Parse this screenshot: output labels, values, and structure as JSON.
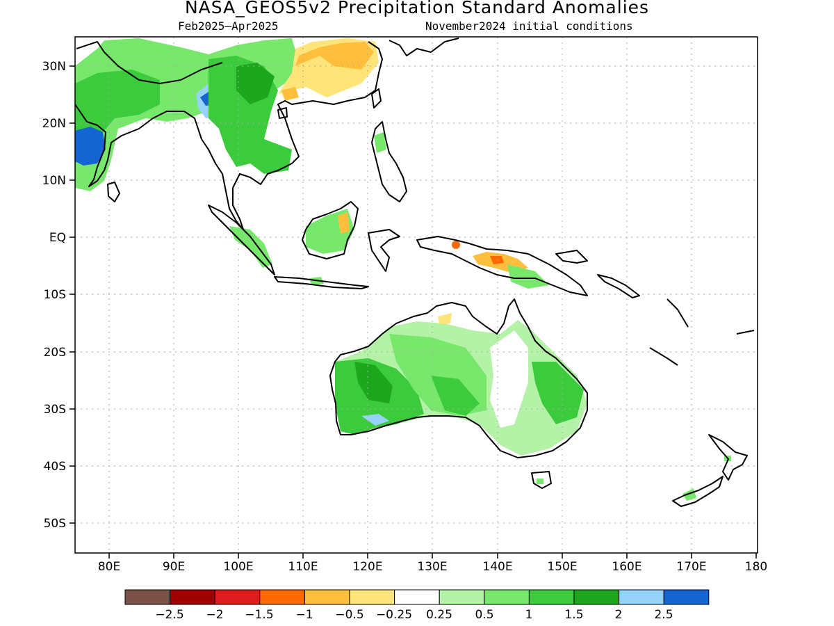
{
  "title": "NASA_GEOS5v2 Precipitation Standard Anomalies",
  "period": "Feb2025–Apr2025",
  "initial_conditions": "November2024 initial conditions",
  "lat_labels": [
    "30N",
    "20N",
    "10N",
    "EQ",
    "10S",
    "20S",
    "30S",
    "40S",
    "50S"
  ],
  "lon_labels": [
    "80E",
    "90E",
    "100E",
    "110E",
    "120E",
    "130E",
    "140E",
    "150E",
    "160E",
    "170E",
    "180"
  ],
  "colorbar": {
    "colors": [
      "#7a5247",
      "#a00000",
      "#dc1e1e",
      "#ff6a00",
      "#ffbe3c",
      "#ffe47a",
      "#ffffff",
      "#b4f2a8",
      "#78e86c",
      "#3ccb3c",
      "#1ea61e",
      "#96d2fa",
      "#1464d2"
    ],
    "labels": [
      "−2.5",
      "−2",
      "−1.5",
      "−1",
      "−0.5",
      "−0.25",
      "0.25",
      "0.5",
      "1",
      "1.5",
      "2",
      "2.5"
    ]
  }
}
